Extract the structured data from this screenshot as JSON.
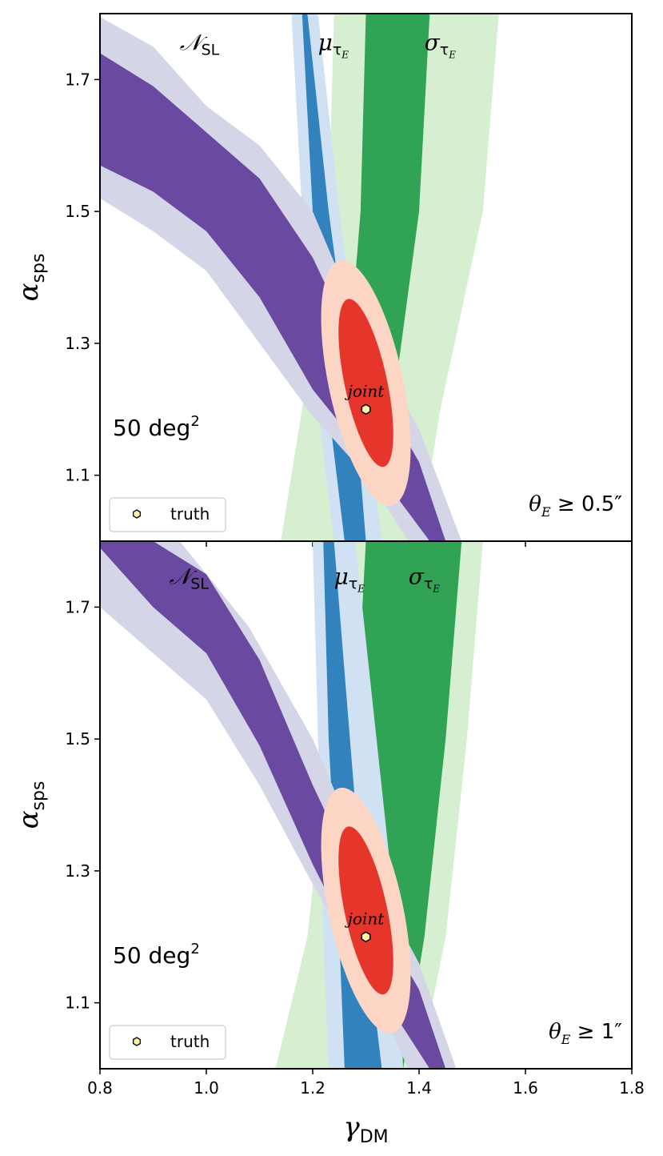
{
  "chart_data": [
    {
      "type": "area",
      "xlim": [
        0.8,
        1.8
      ],
      "ylim": [
        1.0,
        1.8
      ],
      "xticks": [
        "0.8",
        "1.0",
        "1.2",
        "1.4",
        "1.6",
        "1.8"
      ],
      "yticks": [
        "1.1",
        "1.3",
        "1.5",
        "1.7"
      ],
      "ylabel": "α",
      "ylabel_sub": "sps",
      "xlabel": "",
      "survey_label": "50 deg",
      "survey_sup": "2",
      "cut_label": "θ",
      "cut_sub": "E",
      "cut_value": " ≥ 0.5″",
      "band_labels": {
        "nsl": {
          "main": "𝒩",
          "sub": "SL",
          "x": 0.95,
          "y": 1.745
        },
        "mu": {
          "main": "μ",
          "sub": "τ",
          "subsub": "E",
          "x": 1.21,
          "y": 1.745
        },
        "sigma": {
          "main": "σ",
          "sub": "τ",
          "subsub": "E",
          "x": 1.41,
          "y": 1.745
        }
      },
      "joint_label": "joint",
      "legend": {
        "label": "truth",
        "placement": "lower-left"
      },
      "truth": {
        "x": 1.3,
        "y": 1.2
      },
      "joint": {
        "cx": 1.3,
        "cy": 1.24,
        "outer_rx": 0.07,
        "outer_ry": 0.19,
        "inner_rx": 0.04,
        "inner_ry": 0.13
      },
      "nsl_outer": {
        "upper": [
          [
            0.8,
            1.795
          ],
          [
            0.9,
            1.75
          ],
          [
            1.0,
            1.66
          ],
          [
            1.1,
            1.6
          ],
          [
            1.2,
            1.5
          ],
          [
            1.3,
            1.31
          ],
          [
            1.4,
            1.17
          ],
          [
            1.48,
            1.0
          ]
        ],
        "lower": [
          [
            0.8,
            1.52
          ],
          [
            0.9,
            1.47
          ],
          [
            1.0,
            1.41
          ],
          [
            1.1,
            1.3
          ],
          [
            1.2,
            1.19
          ],
          [
            1.3,
            1.1
          ],
          [
            1.38,
            1.0
          ]
        ]
      },
      "nsl_inner": {
        "upper": [
          [
            0.8,
            1.74
          ],
          [
            0.9,
            1.69
          ],
          [
            1.0,
            1.62
          ],
          [
            1.1,
            1.55
          ],
          [
            1.2,
            1.43
          ],
          [
            1.3,
            1.26
          ],
          [
            1.4,
            1.12
          ],
          [
            1.45,
            1.0
          ]
        ],
        "lower": [
          [
            0.8,
            1.57
          ],
          [
            0.9,
            1.53
          ],
          [
            1.0,
            1.47
          ],
          [
            1.1,
            1.37
          ],
          [
            1.2,
            1.23
          ],
          [
            1.3,
            1.13
          ],
          [
            1.42,
            1.0
          ]
        ]
      },
      "mu_outer": {
        "left": [
          [
            1.16,
            1.8
          ],
          [
            1.18,
            1.5
          ],
          [
            1.21,
            1.2
          ],
          [
            1.24,
            1.0
          ]
        ],
        "right": [
          [
            1.21,
            1.8
          ],
          [
            1.25,
            1.5
          ],
          [
            1.3,
            1.2
          ],
          [
            1.33,
            1.0
          ]
        ]
      },
      "mu_inner": {
        "left": [
          [
            1.18,
            1.8
          ],
          [
            1.2,
            1.5
          ],
          [
            1.23,
            1.2
          ],
          [
            1.26,
            1.0
          ]
        ],
        "right": [
          [
            1.19,
            1.8
          ],
          [
            1.23,
            1.5
          ],
          [
            1.28,
            1.2
          ],
          [
            1.3,
            1.0
          ]
        ]
      },
      "sigma_outer": {
        "left": [
          [
            1.24,
            1.8
          ],
          [
            1.23,
            1.5
          ],
          [
            1.18,
            1.2
          ],
          [
            1.14,
            1.0
          ]
        ],
        "right": [
          [
            1.55,
            1.8
          ],
          [
            1.52,
            1.5
          ],
          [
            1.44,
            1.2
          ],
          [
            1.4,
            1.0
          ]
        ]
      },
      "sigma_inner": {
        "left": [
          [
            1.3,
            1.8
          ],
          [
            1.29,
            1.5
          ],
          [
            1.26,
            1.2
          ],
          [
            1.24,
            1.0
          ]
        ],
        "right": [
          [
            1.42,
            1.8
          ],
          [
            1.4,
            1.5
          ],
          [
            1.35,
            1.2
          ],
          [
            1.3,
            1.0
          ]
        ]
      }
    },
    {
      "type": "area",
      "xlim": [
        0.8,
        1.8
      ],
      "ylim": [
        1.0,
        1.8
      ],
      "xticks": [
        "0.8",
        "1.0",
        "1.2",
        "1.4",
        "1.6",
        "1.8"
      ],
      "yticks": [
        "1.1",
        "1.3",
        "1.5",
        "1.7"
      ],
      "ylabel": "α",
      "ylabel_sub": "sps",
      "xlabel": "γ",
      "xlabel_sub": "DM",
      "survey_label": "50 deg",
      "survey_sup": "2",
      "cut_label": "θ",
      "cut_sub": "E",
      "cut_value": " ≥ 1″",
      "band_labels": {
        "nsl": {
          "main": "𝒩",
          "sub": "SL",
          "x": 0.93,
          "y": 1.735
        },
        "mu": {
          "main": "μ",
          "sub": "τ",
          "subsub": "E",
          "x": 1.24,
          "y": 1.735
        },
        "sigma": {
          "main": "σ",
          "sub": "τ",
          "subsub": "E",
          "x": 1.38,
          "y": 1.735
        }
      },
      "joint_label": "joint",
      "legend": {
        "label": "truth",
        "placement": "lower-left"
      },
      "truth": {
        "x": 1.3,
        "y": 1.2
      },
      "joint": {
        "cx": 1.3,
        "cy": 1.24,
        "outer_rx": 0.07,
        "outer_ry": 0.19,
        "inner_rx": 0.04,
        "inner_ry": 0.13
      },
      "nsl_outer": {
        "upper": [
          [
            0.8,
            1.8
          ],
          [
            0.95,
            1.8
          ],
          [
            1.08,
            1.67
          ],
          [
            1.2,
            1.5
          ],
          [
            1.3,
            1.31
          ],
          [
            1.4,
            1.16
          ],
          [
            1.47,
            1.0
          ]
        ],
        "lower": [
          [
            0.8,
            1.7
          ],
          [
            0.9,
            1.63
          ],
          [
            1.0,
            1.56
          ],
          [
            1.1,
            1.43
          ],
          [
            1.2,
            1.28
          ],
          [
            1.3,
            1.14
          ],
          [
            1.38,
            1.0
          ]
        ]
      },
      "nsl_inner": {
        "upper": [
          [
            0.8,
            1.8
          ],
          [
            0.9,
            1.8
          ],
          [
            1.0,
            1.75
          ],
          [
            1.1,
            1.62
          ],
          [
            1.2,
            1.43
          ],
          [
            1.3,
            1.26
          ],
          [
            1.4,
            1.12
          ],
          [
            1.45,
            1.0
          ]
        ],
        "lower": [
          [
            0.8,
            1.79
          ],
          [
            0.9,
            1.7
          ],
          [
            1.0,
            1.63
          ],
          [
            1.1,
            1.49
          ],
          [
            1.2,
            1.31
          ],
          [
            1.3,
            1.15
          ],
          [
            1.42,
            1.0
          ]
        ]
      },
      "mu_outer": {
        "left": [
          [
            1.2,
            1.8
          ],
          [
            1.21,
            1.5
          ],
          [
            1.22,
            1.2
          ],
          [
            1.23,
            1.0
          ]
        ],
        "right": [
          [
            1.28,
            1.8
          ],
          [
            1.32,
            1.5
          ],
          [
            1.36,
            1.2
          ],
          [
            1.37,
            1.0
          ]
        ]
      },
      "mu_inner": {
        "left": [
          [
            1.22,
            1.8
          ],
          [
            1.23,
            1.5
          ],
          [
            1.25,
            1.2
          ],
          [
            1.26,
            1.0
          ]
        ],
        "right": [
          [
            1.24,
            1.8
          ],
          [
            1.27,
            1.5
          ],
          [
            1.3,
            1.2
          ],
          [
            1.33,
            1.0
          ]
        ]
      },
      "sigma_outer": {
        "left": [
          [
            1.25,
            1.8
          ],
          [
            1.23,
            1.5
          ],
          [
            1.19,
            1.2
          ],
          [
            1.13,
            1.0
          ]
        ],
        "right": [
          [
            1.52,
            1.8
          ],
          [
            1.49,
            1.5
          ],
          [
            1.45,
            1.2
          ],
          [
            1.4,
            1.0
          ]
        ]
      },
      "sigma_inner": {
        "left": [
          [
            1.3,
            1.8
          ],
          [
            1.28,
            1.5
          ],
          [
            1.26,
            1.2
          ],
          [
            1.26,
            1.0
          ]
        ],
        "right": [
          [
            1.48,
            1.8
          ],
          [
            1.45,
            1.5
          ],
          [
            1.41,
            1.2
          ],
          [
            1.37,
            1.0
          ]
        ]
      }
    }
  ],
  "colors": {
    "nsl_outer": "#d5d5e8",
    "nsl_inner": "#6a4aa0",
    "mu_outer": "#cfe1f2",
    "mu_inner": "#3182bd",
    "sigma_outer": "#d7efd1",
    "sigma_inner": "#31a354",
    "joint_outer": "#fdd5c4",
    "joint_inner": "#e6352b",
    "truth_marker": "#fff3a0"
  }
}
